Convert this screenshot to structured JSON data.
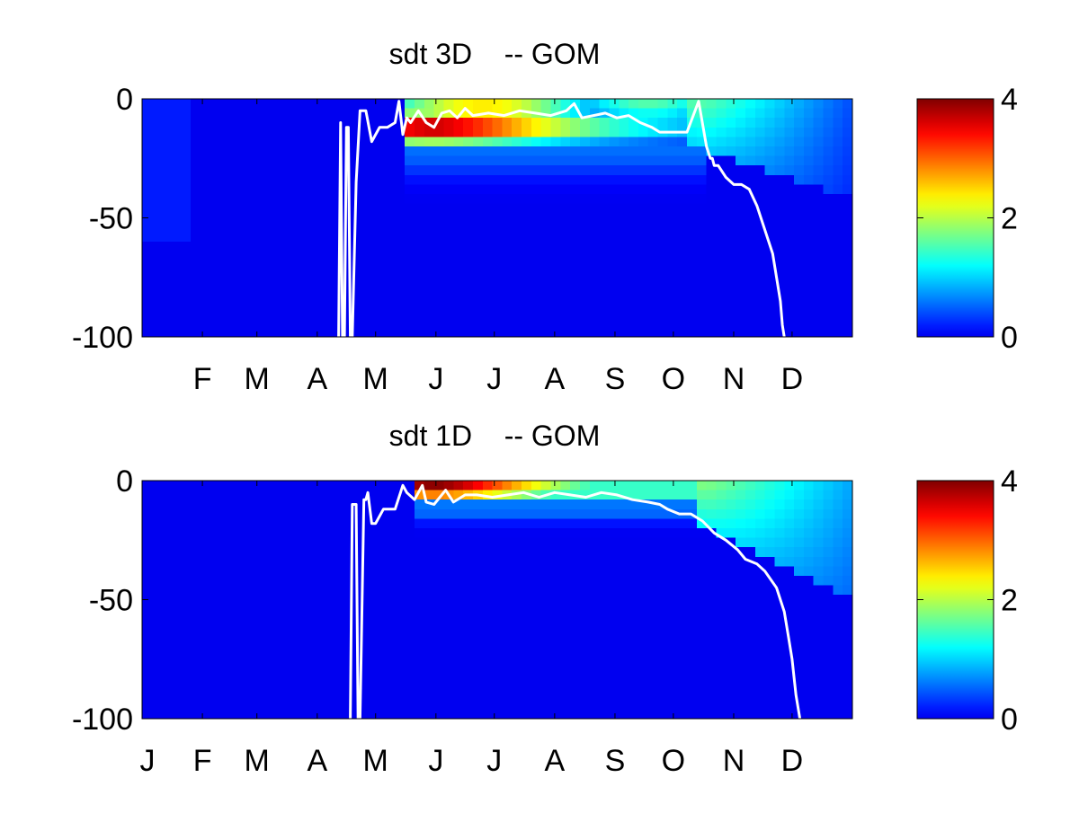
{
  "chart_data": [
    {
      "type": "heatmap",
      "title": "sdt 3D    -- GOM",
      "ylim": [
        -100,
        0
      ],
      "yticks": [
        "0",
        "-50",
        "-100"
      ],
      "ytick_values": [
        0,
        -50,
        -100
      ],
      "xlim": [
        0,
        365
      ],
      "xticks": [
        "F",
        "M",
        "A",
        "M",
        "J",
        "J",
        "A",
        "S",
        "O",
        "N",
        "D"
      ],
      "xtick_values": [
        31,
        59,
        90,
        120,
        151,
        181,
        212,
        243,
        273,
        304,
        334
      ],
      "colorbar": {
        "colormap": "jet",
        "range": [
          0,
          4
        ],
        "ticks": [
          "0",
          "2",
          "4"
        ],
        "tick_values": [
          0,
          2,
          4
        ]
      },
      "mixed_layer_line": {
        "color": "#ffffff",
        "day": [
          101,
          102,
          103,
          104,
          105,
          106,
          107,
          108,
          110,
          112,
          115,
          118,
          122,
          126,
          130,
          132,
          134,
          136,
          138,
          142,
          146,
          150,
          154,
          158,
          162,
          166,
          170,
          178,
          186,
          194,
          202,
          210,
          218,
          222,
          226,
          232,
          238,
          244,
          250,
          256,
          262,
          266,
          270,
          274,
          280,
          286,
          290,
          292,
          293,
          294,
          296,
          300,
          304,
          308,
          312,
          316,
          320,
          324,
          326,
          328,
          329,
          330
        ],
        "depth": [
          -100,
          -10,
          -100,
          -100,
          -12,
          -12,
          -100,
          -100,
          -35,
          -5,
          -5,
          -18,
          -12,
          -12,
          -10,
          -1,
          -15,
          -8,
          -10,
          -5,
          -10,
          -12,
          -6,
          -5,
          -8,
          -4,
          -7,
          -6,
          -7,
          -5,
          -6,
          -7,
          -5,
          -2,
          -8,
          -7,
          -6,
          -8,
          -7,
          -10,
          -12,
          -14,
          -14,
          -14,
          -14,
          -1,
          -20,
          -25,
          -25,
          -28,
          -28,
          -33,
          -36,
          -36,
          -38,
          -45,
          -55,
          -65,
          -75,
          -85,
          -95,
          -100
        ]
      },
      "value_summary": "Values near 0 over most of the depth/time domain; maxima near 4 at 5-15 m depth in late May-June, about 2.5-3 in June-August at 5-15 m, about 1.5-2 near surface in Sep-Oct, and 0.5-1 in the upper 30-40 m during Nov-Dec."
    },
    {
      "type": "heatmap",
      "title": "sdt 1D    -- GOM",
      "ylim": [
        -100,
        0
      ],
      "yticks": [
        "0",
        "-50",
        "-100"
      ],
      "ytick_values": [
        0,
        -50,
        -100
      ],
      "xlim": [
        0,
        365
      ],
      "xticks": [
        "J",
        "F",
        "M",
        "A",
        "M",
        "J",
        "J",
        "A",
        "S",
        "O",
        "N",
        "D"
      ],
      "xtick_values": [
        0,
        31,
        59,
        90,
        120,
        151,
        181,
        212,
        243,
        273,
        304,
        334
      ],
      "colorbar": {
        "colormap": "jet",
        "range": [
          0,
          4
        ],
        "ticks": [
          "0",
          "2",
          "4"
        ],
        "tick_values": [
          0,
          2,
          4
        ]
      },
      "mixed_layer_line": {
        "color": "#ffffff",
        "day": [
          107,
          108,
          110,
          111,
          112,
          114,
          115,
          116,
          118,
          120,
          124,
          130,
          134,
          136,
          140,
          144,
          146,
          150,
          156,
          160,
          166,
          172,
          180,
          188,
          196,
          204,
          212,
          220,
          228,
          236,
          244,
          252,
          260,
          266,
          270,
          276,
          282,
          288,
          294,
          300,
          306,
          310,
          316,
          320,
          326,
          330,
          332,
          334,
          336,
          338
        ],
        "depth": [
          -100,
          -10,
          -10,
          -100,
          -100,
          -8,
          -8,
          -5,
          -18,
          -18,
          -12,
          -12,
          -2,
          -5,
          -8,
          -2,
          -9,
          -10,
          -4,
          -9,
          -6,
          -6,
          -7,
          -6,
          -5,
          -7,
          -5,
          -6,
          -7,
          -5,
          -6,
          -8,
          -9,
          -10,
          -12,
          -14,
          -14,
          -17,
          -22,
          -25,
          -29,
          -33,
          -35,
          -38,
          -45,
          -55,
          -65,
          -75,
          -90,
          -100
        ]
      },
      "value_summary": "Values near 0 except upper ocean: maximum near 4 at 0-5 m in June, 1.5-2.5 near surface June-October, 0.5-1.5 in upper 20-40 m during Nov-Dec."
    }
  ]
}
